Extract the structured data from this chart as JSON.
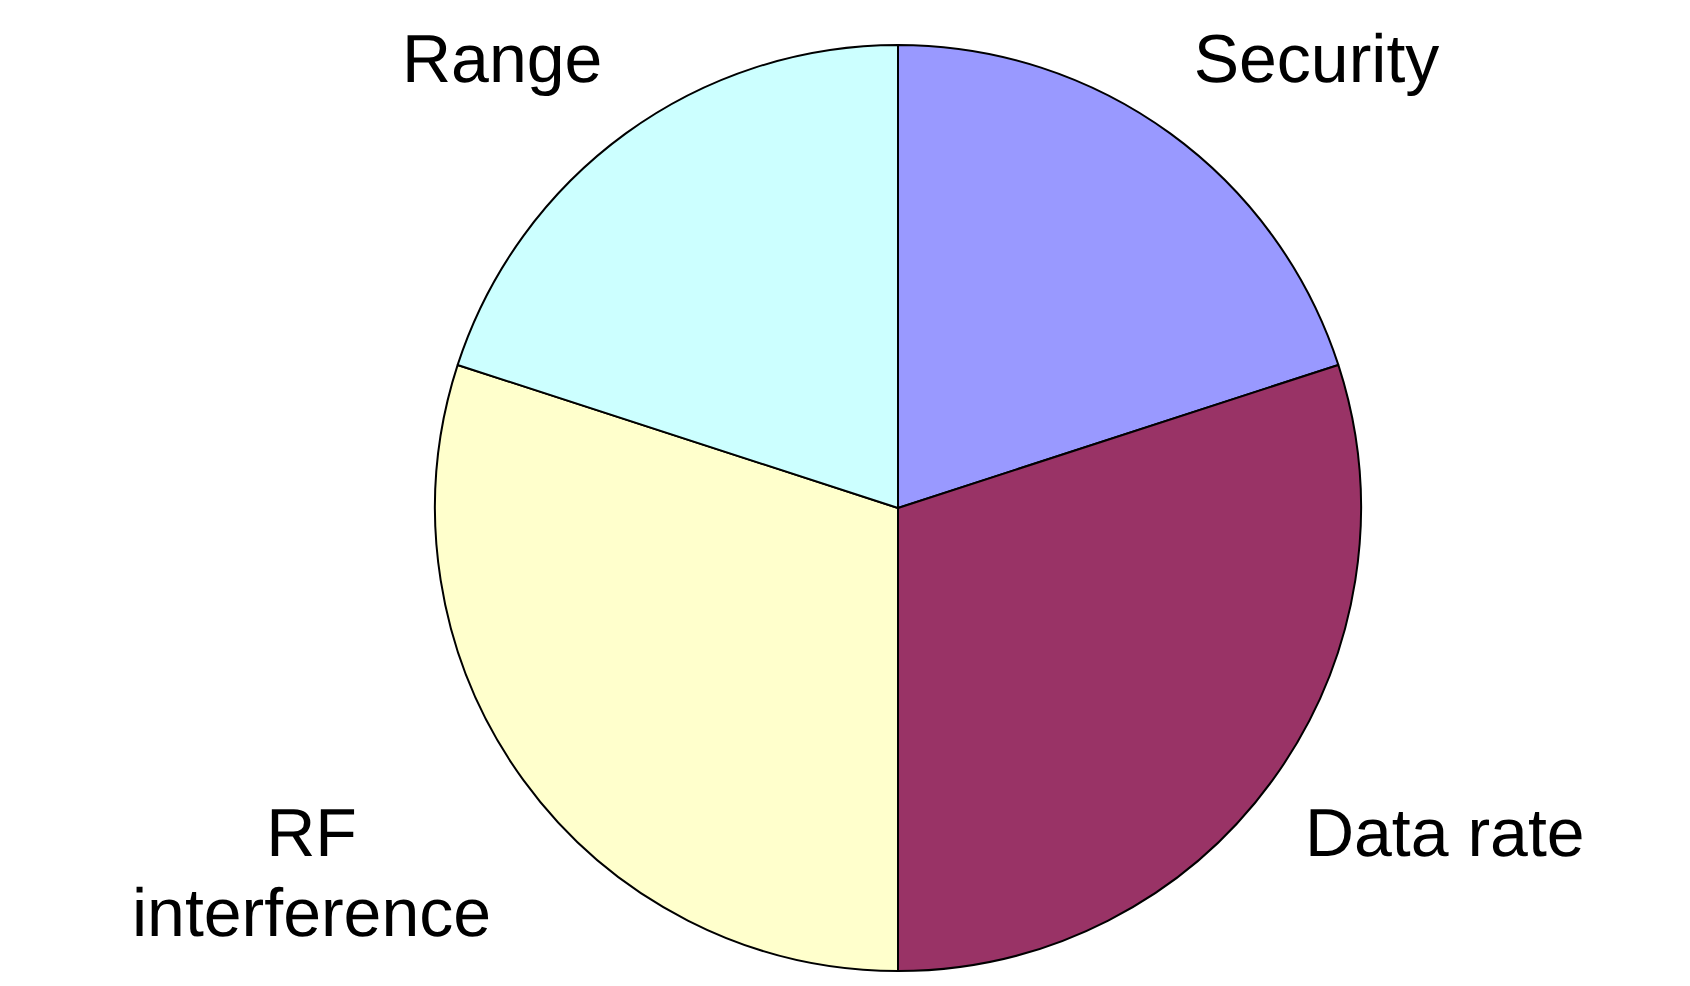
{
  "chart_data": {
    "type": "pie",
    "categories": [
      "Security",
      "Data rate",
      "RF interference",
      "Range"
    ],
    "values": [
      20,
      30,
      30,
      20
    ],
    "colors": [
      "#9999ff",
      "#993366",
      "#ffffcc",
      "#ccffff"
    ],
    "legend": false
  }
}
